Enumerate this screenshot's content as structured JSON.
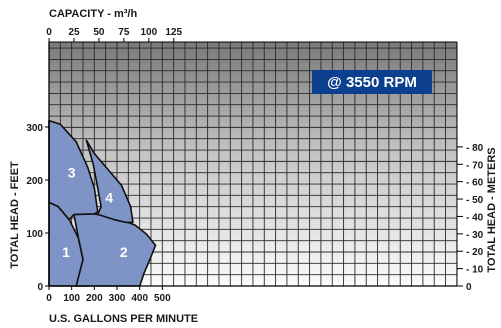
{
  "chart_data": {
    "type": "area",
    "title": "",
    "xlabel": "U.S. GALLONS PER MINUTE",
    "ylabel": "TOTAL HEAD - FEET",
    "x_secondary_label": "CAPACITY - m³/h",
    "y_secondary_label": "TOTAL HEAD - METERS",
    "annotation": "@ 3550 RPM",
    "xlim": [
      0,
      1800
    ],
    "ylim": [
      0,
      420
    ],
    "x_ticks": [
      0,
      100,
      200,
      300,
      400,
      500
    ],
    "y_ticks": [
      0,
      100,
      200,
      300
    ],
    "x2_ticks": [
      0,
      25,
      50,
      75,
      100,
      125
    ],
    "y2_ticks": [
      0,
      10,
      20,
      30,
      40,
      50,
      60,
      70,
      80
    ],
    "grid": true,
    "series": [
      {
        "name": "1",
        "label_at": [
          75,
          55
        ],
        "outline": [
          [
            0,
            0
          ],
          [
            0,
            158
          ],
          [
            40,
            150
          ],
          [
            90,
            125
          ],
          [
            130,
            90
          ],
          [
            150,
            50
          ],
          [
            165,
            0
          ]
        ]
      },
      {
        "name": "2",
        "label_at": [
          330,
          55
        ],
        "outline": [
          [
            120,
            0
          ],
          [
            150,
            50
          ],
          [
            130,
            90
          ],
          [
            110,
            135
          ],
          [
            200,
            136
          ],
          [
            300,
            128
          ],
          [
            380,
            115
          ],
          [
            430,
            98
          ],
          [
            470,
            77
          ],
          [
            445,
            50
          ],
          [
            420,
            25
          ],
          [
            400,
            0
          ]
        ]
      },
      {
        "name": "3",
        "label_at": [
          100,
          205
        ],
        "outline": [
          [
            0,
            158
          ],
          [
            0,
            312
          ],
          [
            50,
            305
          ],
          [
            120,
            272
          ],
          [
            170,
            225
          ],
          [
            200,
            185
          ],
          [
            215,
            140
          ],
          [
            200,
            136
          ],
          [
            110,
            135
          ],
          [
            90,
            125
          ],
          [
            40,
            150
          ]
        ]
      },
      {
        "name": "4",
        "label_at": [
          265,
          158
        ],
        "outline": [
          [
            165,
            275
          ],
          [
            200,
            250
          ],
          [
            260,
            220
          ],
          [
            320,
            190
          ],
          [
            360,
            150
          ],
          [
            370,
            120
          ],
          [
            340,
            120
          ],
          [
            290,
            125
          ],
          [
            215,
            135
          ],
          [
            230,
            150
          ],
          [
            215,
            185
          ],
          [
            195,
            230
          ]
        ]
      }
    ]
  }
}
